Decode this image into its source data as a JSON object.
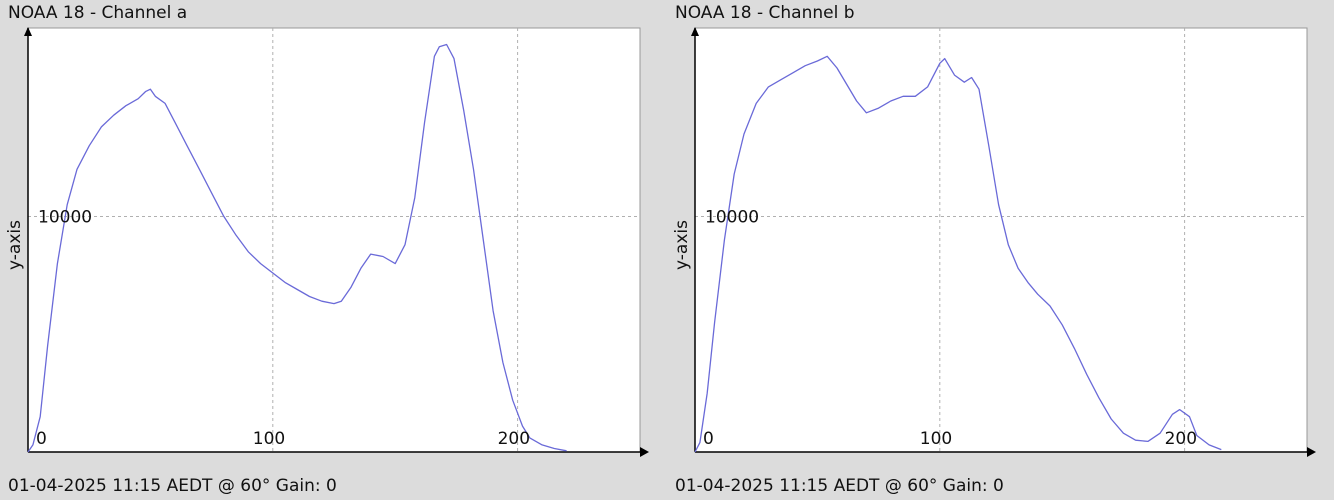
{
  "colors": {
    "background": "#dcdcdc",
    "plot_bg": "#ffffff",
    "line": "#6a6ad8",
    "grid": "#b0b0b0",
    "axis": "#000000"
  },
  "panels": [
    {
      "title": "NOAA 18 - Channel a",
      "footer": "01-04-2025 11:15 AEDT @ 60° Gain: 0"
    },
    {
      "title": "NOAA 18 - Channel b",
      "footer": "01-04-2025 11:15 AEDT @ 60° Gain: 0"
    }
  ],
  "chart_data": [
    {
      "type": "line",
      "title": "NOAA 18 - Channel a",
      "ylabel": "y-axis",
      "xlabel": "",
      "xlim": [
        0,
        250
      ],
      "ylim": [
        0,
        18000
      ],
      "x_ticks": [
        0,
        100,
        200
      ],
      "y_ticks": [
        10000
      ],
      "grid": true,
      "series": [
        {
          "points": [
            [
              0,
              0
            ],
            [
              2,
              300
            ],
            [
              5,
              1500
            ],
            [
              8,
              4500
            ],
            [
              12,
              8000
            ],
            [
              16,
              10500
            ],
            [
              20,
              12000
            ],
            [
              25,
              13000
            ],
            [
              30,
              13800
            ],
            [
              35,
              14300
            ],
            [
              40,
              14700
            ],
            [
              45,
              15000
            ],
            [
              48,
              15300
            ],
            [
              50,
              15400
            ],
            [
              52,
              15100
            ],
            [
              56,
              14800
            ],
            [
              60,
              14000
            ],
            [
              65,
              13000
            ],
            [
              70,
              12000
            ],
            [
              75,
              11000
            ],
            [
              80,
              10000
            ],
            [
              85,
              9200
            ],
            [
              90,
              8500
            ],
            [
              95,
              8000
            ],
            [
              100,
              7600
            ],
            [
              105,
              7200
            ],
            [
              110,
              6900
            ],
            [
              115,
              6600
            ],
            [
              120,
              6400
            ],
            [
              125,
              6300
            ],
            [
              128,
              6400
            ],
            [
              132,
              7000
            ],
            [
              136,
              7800
            ],
            [
              140,
              8400
            ],
            [
              145,
              8300
            ],
            [
              150,
              8000
            ],
            [
              154,
              8800
            ],
            [
              158,
              10800
            ],
            [
              162,
              14000
            ],
            [
              166,
              16800
            ],
            [
              168,
              17200
            ],
            [
              171,
              17300
            ],
            [
              174,
              16700
            ],
            [
              178,
              14500
            ],
            [
              182,
              12000
            ],
            [
              186,
              9000
            ],
            [
              190,
              6000
            ],
            [
              194,
              3800
            ],
            [
              198,
              2200
            ],
            [
              202,
              1100
            ],
            [
              205,
              600
            ],
            [
              210,
              300
            ],
            [
              215,
              150
            ],
            [
              220,
              50
            ]
          ]
        }
      ]
    },
    {
      "type": "line",
      "title": "NOAA 18 - Channel b",
      "ylabel": "y-axis",
      "xlabel": "",
      "xlim": [
        0,
        250
      ],
      "ylim": [
        0,
        18000
      ],
      "x_ticks": [
        0,
        100,
        200
      ],
      "y_ticks": [
        10000
      ],
      "grid": true,
      "series": [
        {
          "points": [
            [
              0,
              0
            ],
            [
              2,
              400
            ],
            [
              5,
              2500
            ],
            [
              8,
              5500
            ],
            [
              12,
              9000
            ],
            [
              16,
              11800
            ],
            [
              20,
              13500
            ],
            [
              25,
              14800
            ],
            [
              30,
              15500
            ],
            [
              35,
              15800
            ],
            [
              40,
              16100
            ],
            [
              45,
              16400
            ],
            [
              50,
              16600
            ],
            [
              54,
              16800
            ],
            [
              58,
              16300
            ],
            [
              62,
              15600
            ],
            [
              66,
              14900
            ],
            [
              70,
              14400
            ],
            [
              75,
              14600
            ],
            [
              80,
              14900
            ],
            [
              85,
              15100
            ],
            [
              90,
              15100
            ],
            [
              95,
              15500
            ],
            [
              100,
              16500
            ],
            [
              102,
              16700
            ],
            [
              106,
              16000
            ],
            [
              110,
              15700
            ],
            [
              113,
              15900
            ],
            [
              116,
              15400
            ],
            [
              120,
              13000
            ],
            [
              124,
              10500
            ],
            [
              128,
              8800
            ],
            [
              132,
              7800
            ],
            [
              136,
              7200
            ],
            [
              140,
              6700
            ],
            [
              145,
              6200
            ],
            [
              150,
              5400
            ],
            [
              155,
              4400
            ],
            [
              160,
              3300
            ],
            [
              165,
              2300
            ],
            [
              170,
              1400
            ],
            [
              175,
              800
            ],
            [
              180,
              500
            ],
            [
              185,
              450
            ],
            [
              190,
              800
            ],
            [
              195,
              1600
            ],
            [
              198,
              1800
            ],
            [
              202,
              1500
            ],
            [
              205,
              700
            ],
            [
              210,
              300
            ],
            [
              215,
              100
            ]
          ]
        }
      ]
    }
  ]
}
